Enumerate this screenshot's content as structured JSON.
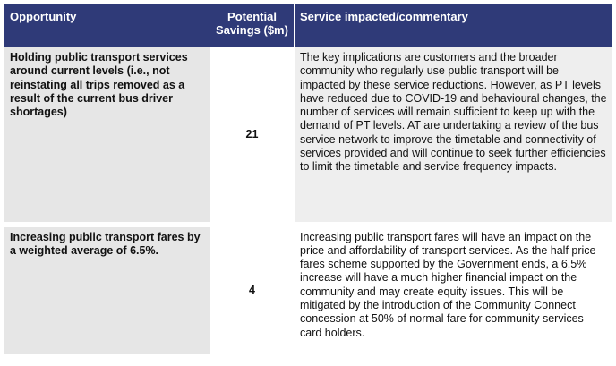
{
  "table": {
    "headers": {
      "opportunity": "Opportunity",
      "savings": "Potential Savings ($m)",
      "commentary": "Service impacted/commentary"
    },
    "rows": [
      {
        "opportunity": "Holding public transport services around current levels (i.e., not reinstating all trips removed as a result of the current bus driver shortages)",
        "savings": "21",
        "commentary": "The key implications are customers and the broader community who regularly use public transport will be impacted by these service reductions. However, as PT levels have reduced due to COVID-19 and behavioural changes, the number of services will remain sufficient to keep up with the demand of PT levels. AT are undertaking a review of the bus service network to improve the timetable and connectivity of services provided and will continue to seek further efficiencies to limit the timetable and service frequency impacts."
      },
      {
        "opportunity": "Increasing public transport fares by a weighted average of 6.5%.",
        "savings": "4",
        "commentary": "Increasing public transport fares will have an impact on the price and affordability of transport services. As the half price fares scheme supported by the Government ends, a 6.5% increase will have a much higher financial impact on the community and may create equity issues. This will be mitigated by the introduction of the Community Connect concession at 50% of normal fare for community services card holders."
      }
    ]
  }
}
